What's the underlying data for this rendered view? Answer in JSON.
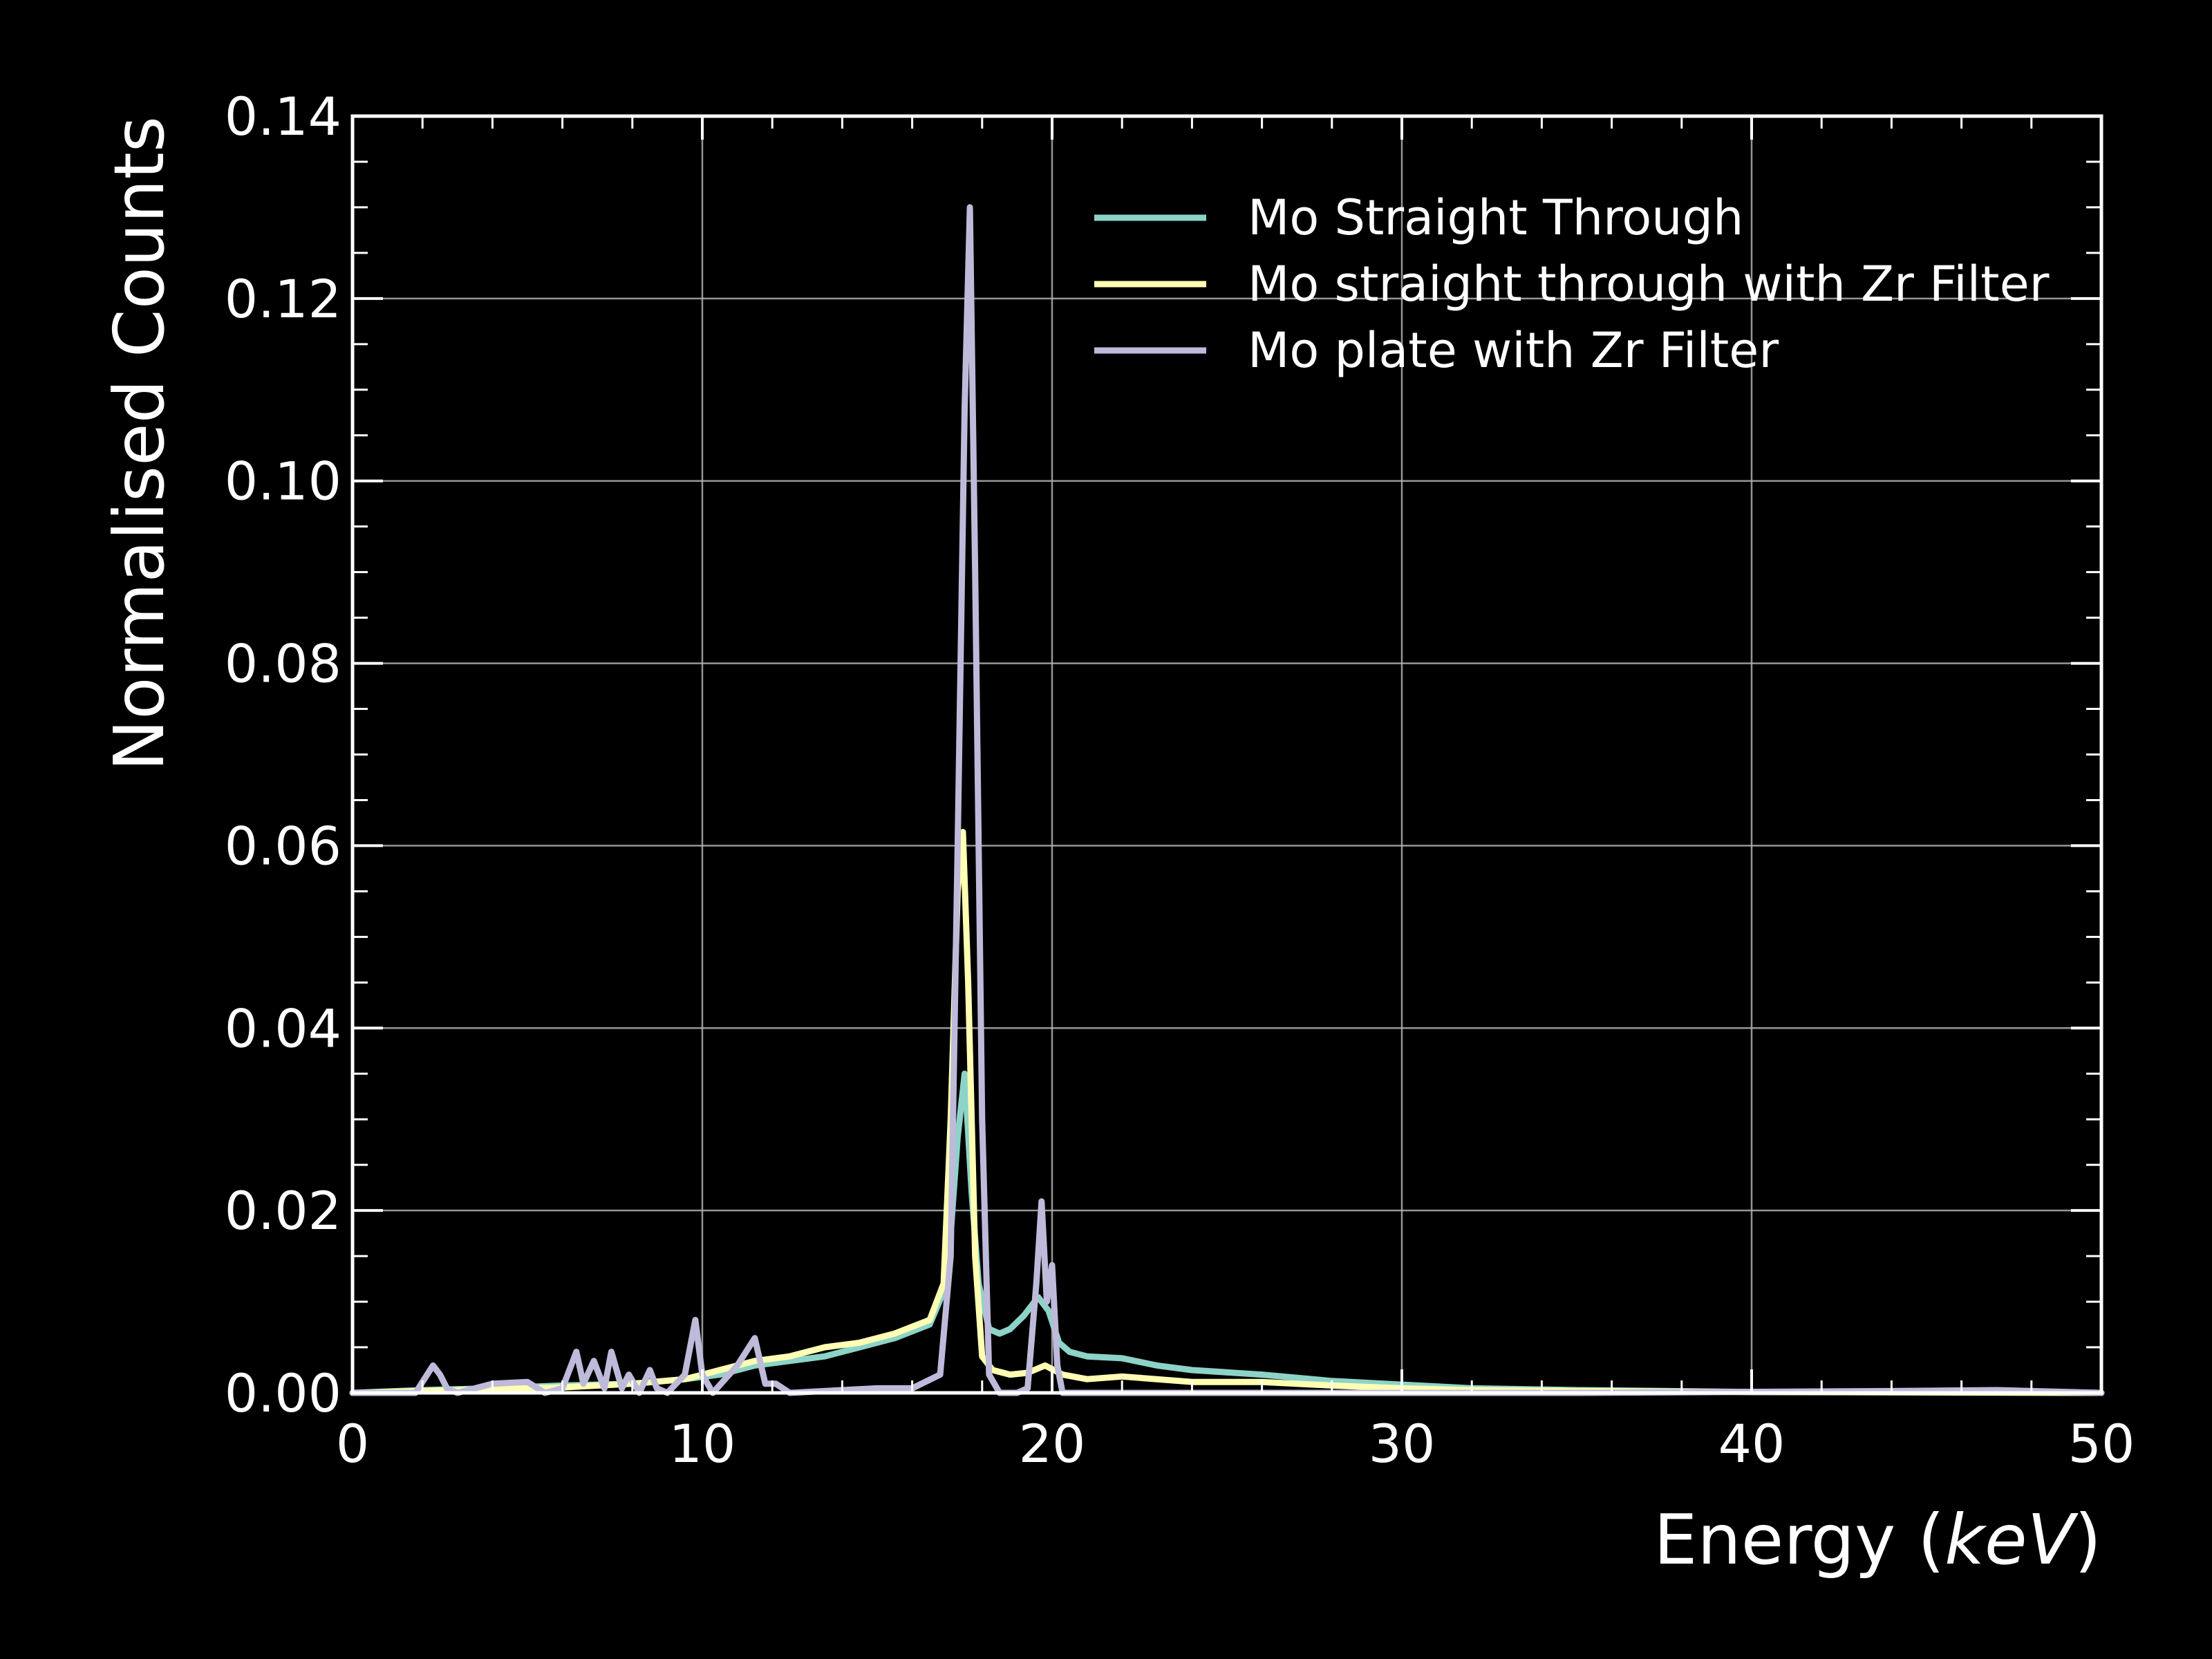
{
  "chart_data": {
    "type": "line",
    "title": "",
    "xlabel": {
      "prefix": "Energy (",
      "italic": "keV",
      "suffix": ")"
    },
    "ylabel": "Normalised Counts",
    "xlim": [
      0,
      50
    ],
    "ylim": [
      0,
      0.14
    ],
    "x_ticks": [
      "0",
      "10",
      "20",
      "30",
      "40",
      "50"
    ],
    "y_ticks": [
      "0.00",
      "0.02",
      "0.04",
      "0.06",
      "0.08",
      "0.10",
      "0.12",
      "0.14"
    ],
    "grid": true,
    "legend_position": "top-right",
    "background": "#000000",
    "series": [
      {
        "name": "Mo Straight Through",
        "color": "#8dd3c7",
        "x": [
          0,
          2,
          4,
          6,
          8,
          9.5,
          10.5,
          11.5,
          12.5,
          13.5,
          14.5,
          15.5,
          16.5,
          17.0,
          17.3,
          17.5,
          17.7,
          17.9,
          18.2,
          18.5,
          18.8,
          19.2,
          19.6,
          19.9,
          20.2,
          20.5,
          21.0,
          22.0,
          23.0,
          24.0,
          26.0,
          28.0,
          30.0,
          32.0,
          35.0,
          40.0,
          45.0,
          50.0
        ],
        "y": [
          0,
          0.0003,
          0.0005,
          0.0008,
          0.001,
          0.0015,
          0.002,
          0.003,
          0.0035,
          0.004,
          0.005,
          0.006,
          0.0075,
          0.012,
          0.028,
          0.035,
          0.022,
          0.012,
          0.007,
          0.0065,
          0.007,
          0.0085,
          0.0105,
          0.009,
          0.0055,
          0.0045,
          0.004,
          0.0038,
          0.003,
          0.0025,
          0.002,
          0.0013,
          0.0009,
          0.0005,
          0.0003,
          0.0001,
          0.0001,
          0
        ]
      },
      {
        "name": "Mo straight through with Zr Filter",
        "color": "#ffffb3",
        "x": [
          0,
          2,
          4,
          6,
          8,
          9.5,
          10.5,
          11.5,
          12.5,
          13.5,
          14.5,
          15.5,
          16.5,
          16.9,
          17.1,
          17.3,
          17.45,
          17.6,
          17.8,
          18.0,
          18.3,
          18.8,
          19.3,
          19.8,
          20.3,
          21.0,
          22.0,
          24.0,
          26.0,
          28.0,
          30.0,
          32.0,
          35.0,
          40.0,
          50.0
        ],
        "y": [
          0,
          0.0002,
          0.0004,
          0.0006,
          0.001,
          0.0015,
          0.0025,
          0.0035,
          0.004,
          0.005,
          0.0055,
          0.0065,
          0.008,
          0.012,
          0.03,
          0.055,
          0.0615,
          0.045,
          0.015,
          0.004,
          0.0025,
          0.002,
          0.0022,
          0.003,
          0.002,
          0.0015,
          0.0018,
          0.0012,
          0.0012,
          0.0008,
          0.0005,
          0.0003,
          0.0002,
          0.0001,
          0
        ]
      },
      {
        "name": "Mo plate with Zr Filter",
        "color": "#bebada",
        "x": [
          0,
          1.8,
          2.3,
          2.5,
          2.7,
          3.0,
          4.0,
          5.0,
          5.5,
          6.0,
          6.4,
          6.6,
          6.9,
          7.2,
          7.4,
          7.7,
          7.9,
          8.2,
          8.5,
          8.7,
          9.0,
          9.5,
          9.8,
          10.0,
          10.3,
          11.0,
          11.5,
          11.8,
          12.1,
          12.5,
          14.0,
          15.0,
          16.0,
          16.8,
          17.1,
          17.3,
          17.5,
          17.65,
          17.8,
          18.0,
          18.2,
          18.5,
          19.0,
          19.3,
          19.55,
          19.7,
          19.85,
          20.0,
          20.15,
          20.3,
          21.0,
          25.0,
          35.0,
          44.0,
          47.0,
          50.0
        ],
        "y": [
          0,
          0,
          0.003,
          0.002,
          0.0005,
          0,
          0.001,
          0.0012,
          0,
          0.0005,
          0.0045,
          0.001,
          0.0035,
          0.0005,
          0.0045,
          0.0005,
          0.002,
          0,
          0.0025,
          0.0005,
          0,
          0.002,
          0.008,
          0.002,
          0,
          0.003,
          0.006,
          0.001,
          0.001,
          0,
          0.0003,
          0.0005,
          0.0005,
          0.002,
          0.015,
          0.06,
          0.108,
          0.13,
          0.09,
          0.03,
          0.002,
          0,
          0,
          0.0005,
          0.012,
          0.021,
          0.01,
          0.014,
          0.003,
          0,
          0,
          0,
          0,
          0.0002,
          0.0003,
          0
        ]
      }
    ]
  }
}
